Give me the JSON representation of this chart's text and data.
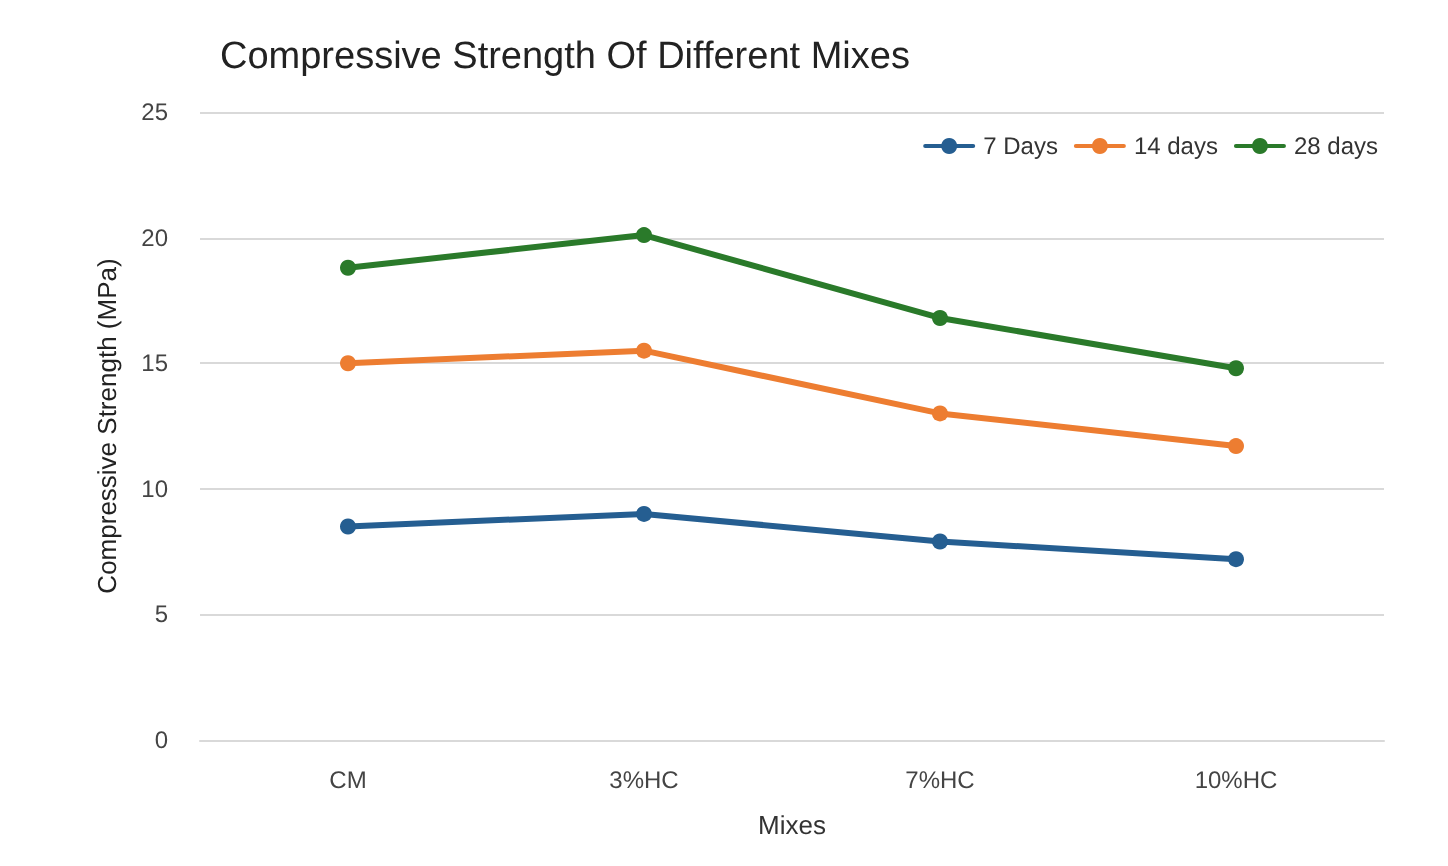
{
  "chart_data": {
    "type": "line",
    "title": "Compressive Strength Of Different Mixes",
    "xlabel": "Mixes",
    "ylabel": "Compressive Strength (MPa)",
    "categories": [
      "CM",
      "3%HC",
      "7%HC",
      "10%HC"
    ],
    "series": [
      {
        "name": "7 Days",
        "color": "#255e91",
        "values": [
          8.5,
          9.0,
          7.9,
          7.2
        ]
      },
      {
        "name": "14 days",
        "color": "#ed7d31",
        "values": [
          15.0,
          15.5,
          13.0,
          11.7
        ]
      },
      {
        "name": "28 days",
        "color": "#2a7a2a",
        "values": [
          18.8,
          20.1,
          16.8,
          14.8
        ]
      }
    ],
    "ylim": [
      0,
      25
    ],
    "yticks": [
      0,
      5,
      10,
      15,
      20,
      25
    ],
    "grid": "y",
    "legend": "top right",
    "marker": "circle",
    "line_style": "solid"
  }
}
